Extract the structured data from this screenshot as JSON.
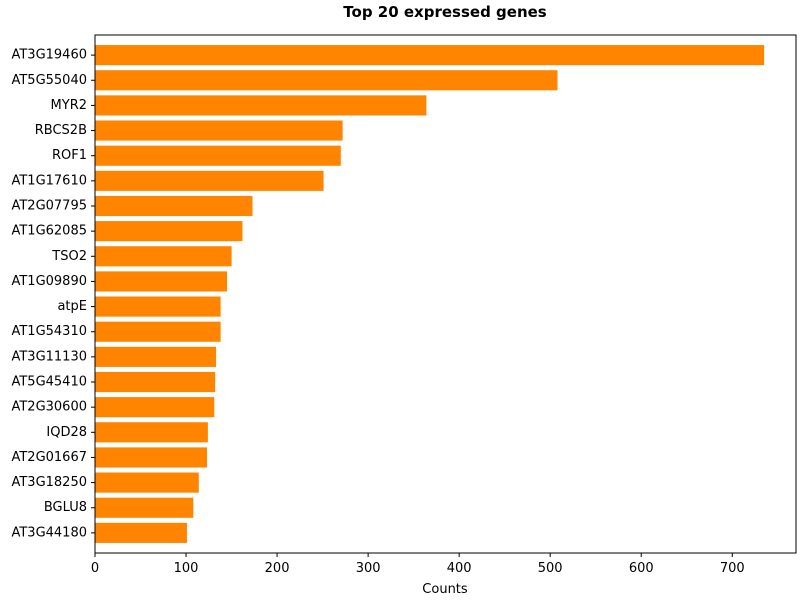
{
  "chart_data": {
    "type": "bar",
    "orientation": "horizontal",
    "title": "Top 20 expressed genes",
    "xlabel": "Counts",
    "ylabel": "",
    "xlim": [
      0,
      770
    ],
    "xticks": [
      0,
      100,
      200,
      300,
      400,
      500,
      600,
      700
    ],
    "grid": false,
    "legend": "none",
    "bar_color": "#ff8400",
    "categories": [
      "AT3G19460",
      "AT5G55040",
      "MYR2",
      "RBCS2B",
      "ROF1",
      "AT1G17610",
      "AT2G07795",
      "AT1G62085",
      "TSO2",
      "AT1G09890",
      "atpE",
      "AT1G54310",
      "AT3G11130",
      "AT5G45410",
      "AT2G30600",
      "IQD28",
      "AT2G01667",
      "AT3G18250",
      "BGLU8",
      "AT3G44180"
    ],
    "values": [
      735,
      508,
      364,
      272,
      270,
      251,
      173,
      162,
      150,
      145,
      138,
      138,
      133,
      132,
      131,
      124,
      123,
      114,
      108,
      101
    ]
  }
}
